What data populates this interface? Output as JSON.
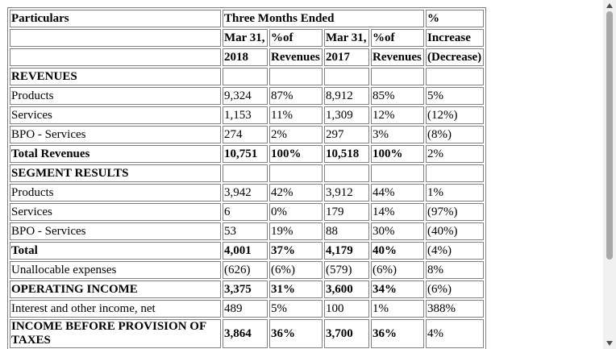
{
  "table": {
    "header": {
      "particulars": "Particulars",
      "period": "Three Months Ended",
      "change": "%",
      "row2": [
        "Mar 31,",
        "%of",
        "Mar 31,",
        "%of",
        "Increase"
      ],
      "row3": [
        "2018",
        "Revenues",
        "2017",
        "Revenues",
        "(Decrease)"
      ]
    },
    "rows": [
      {
        "label": "REVENUES",
        "section": true
      },
      {
        "label": "Products",
        "cells": [
          "9,324",
          "87%",
          "8,912",
          "85%",
          "5%"
        ]
      },
      {
        "label": "Services",
        "cells": [
          "1,153",
          "11%",
          "1,309",
          "12%",
          "(12%)"
        ]
      },
      {
        "label": "BPO - Services",
        "cells": [
          "274",
          "2%",
          "297",
          "3%",
          "(8%)"
        ]
      },
      {
        "label": "Total Revenues",
        "bold": true,
        "cells": [
          "10,751",
          "100%",
          "10,518",
          "100%",
          "2%"
        ]
      },
      {
        "label": "SEGMENT RESULTS",
        "section": true
      },
      {
        "label": "Products",
        "cells": [
          "3,942",
          "42%",
          "3,912",
          "44%",
          "1%"
        ]
      },
      {
        "label": "Services",
        "cells": [
          "6",
          "0%",
          "179",
          "14%",
          "(97%)"
        ]
      },
      {
        "label": "BPO - Services",
        "cells": [
          "53",
          "19%",
          "88",
          "30%",
          "(40%)"
        ]
      },
      {
        "label": "Total",
        "bold": true,
        "cells": [
          "4,001",
          "37%",
          "4,179",
          "40%",
          "(4%)"
        ]
      },
      {
        "label": "Unallocable expenses",
        "cells": [
          "(626)",
          "(6%)",
          "(579)",
          "(6%)",
          "8%"
        ]
      },
      {
        "label": "OPERATING INCOME",
        "bold": true,
        "cells": [
          "3,375",
          "31%",
          "3,600",
          "34%",
          "(6%)"
        ]
      },
      {
        "label": "Interest and other income, net",
        "cells": [
          "489",
          "5%",
          "100",
          "1%",
          "388%"
        ]
      },
      {
        "label": "INCOME BEFORE PROVISION OF TAXES",
        "bold": true,
        "cells": [
          "3,864",
          "36%",
          "3,700",
          "36%",
          "4%"
        ]
      }
    ]
  }
}
